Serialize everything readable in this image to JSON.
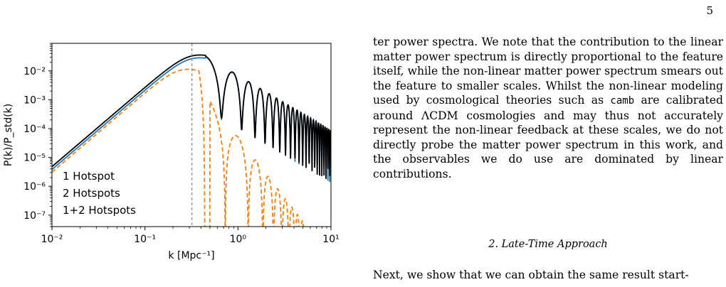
{
  "page_number": "5",
  "figure": {
    "ylabel": "P(k)/P_std(k)",
    "xlabel": "k [Mpc⁻¹]",
    "legend": [
      "1 Hotspot",
      "2 Hotspots",
      "1+2 Hotspots"
    ],
    "colors": {
      "one": "#1f77b4",
      "two": "#ff7f0e",
      "sum": "#000000",
      "vline": "#888888"
    }
  },
  "chart_data": {
    "type": "line",
    "xscale": "log",
    "yscale": "log",
    "xlim": [
      0.01,
      10
    ],
    "ylim": [
      4e-08,
      0.09
    ],
    "x_ticks": [
      "10⁻²",
      "10⁻¹",
      "10⁰",
      "10¹"
    ],
    "y_ticks": [
      "10⁻⁷",
      "10⁻⁶",
      "10⁻⁵",
      "10⁻⁴",
      "10⁻³",
      "10⁻²"
    ],
    "vline_x": 0.32,
    "legend_placement": "lower-left",
    "series": [
      {
        "name": "1 Hotspot",
        "color": "#1f77b4",
        "style": "solid",
        "x": [
          0.01,
          0.02,
          0.05,
          0.1,
          0.2,
          0.3,
          0.4,
          0.5,
          0.6
        ],
        "y": [
          3.5e-06,
          2.5e-05,
          0.00035,
          0.0025,
          0.0155,
          0.026,
          0.024,
          0.015,
          0.006
        ]
      },
      {
        "name": "2 Hotspots",
        "color": "#ff7f0e",
        "style": "dashed",
        "x": [
          0.01,
          0.02,
          0.05,
          0.1,
          0.2,
          0.25,
          0.3,
          0.35,
          0.4,
          0.44
        ],
        "y": [
          3.5e-06,
          2.3e-05,
          0.00033,
          0.0023,
          0.0105,
          0.0115,
          0.009,
          0.004,
          0.0005,
          4e-08
        ]
      },
      {
        "name": "1+2 Hotspots",
        "color": "#000000",
        "style": "solid",
        "x": [
          0.01,
          0.02,
          0.05,
          0.1,
          0.2,
          0.3,
          0.4,
          0.5,
          0.6,
          0.75
        ],
        "y": [
          6e-06,
          4.5e-05,
          0.00065,
          0.0045,
          0.025,
          0.036,
          0.033,
          0.02,
          0.006,
          0.0002
        ]
      }
    ]
  },
  "text": {
    "p1_a": "ter power spectra. We note that the contribution to the linear matter power spectrum is directly proportional to the feature itself, while the non-linear matter power spectrum smears out the feature to smaller scales. Whilst the non-linear modeling used by cosmological theories such as ",
    "p1_code": "camb",
    "p1_b": " are calibrated around ΛCDM cosmologies and may thus not accurately represent the non-linear feedback at these scales, we do not directly probe the matter power spectrum in this work, and the observables we do use are dominated by linear contributions.",
    "section": "2.  Late-Time Approach",
    "p2": "Next, we show that we can obtain the same result start-"
  }
}
